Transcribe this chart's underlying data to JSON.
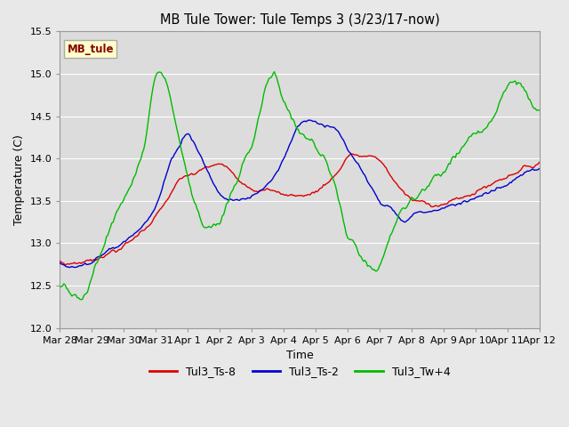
{
  "title": "MB Tule Tower: Tule Temps 3 (3/23/17-now)",
  "xlabel": "Time",
  "ylabel": "Temperature (C)",
  "ylim": [
    12.0,
    15.5
  ],
  "xlim": [
    0,
    360
  ],
  "bg_color": "#e8e8e8",
  "plot_bg": "#dcdcdc",
  "grid_color": "#ffffff",
  "legend_label": "MB_tule",
  "legend_bg": "#ffffcc",
  "legend_border": "#aaaaaa",
  "series_labels": [
    "Tul3_Ts-8",
    "Tul3_Ts-2",
    "Tul3_Tw+4"
  ],
  "series_colors": [
    "#dd0000",
    "#0000cc",
    "#00bb00"
  ],
  "xtick_labels": [
    "Mar 28",
    "Mar 29",
    "Mar 30",
    "Mar 31",
    "Apr 1",
    "Apr 2",
    "Apr 3",
    "Apr 4",
    "Apr 5",
    "Apr 6",
    "Apr 7",
    "Apr 8",
    "Apr 9",
    "Apr 10",
    "Apr 11",
    "Apr 12"
  ],
  "xtick_positions": [
    0,
    24,
    48,
    72,
    96,
    120,
    144,
    168,
    192,
    216,
    240,
    264,
    288,
    312,
    336,
    360
  ],
  "ytick_values": [
    12.0,
    12.5,
    13.0,
    13.5,
    14.0,
    14.5,
    15.0,
    15.5
  ],
  "figsize": [
    6.4,
    4.8
  ],
  "dpi": 100
}
